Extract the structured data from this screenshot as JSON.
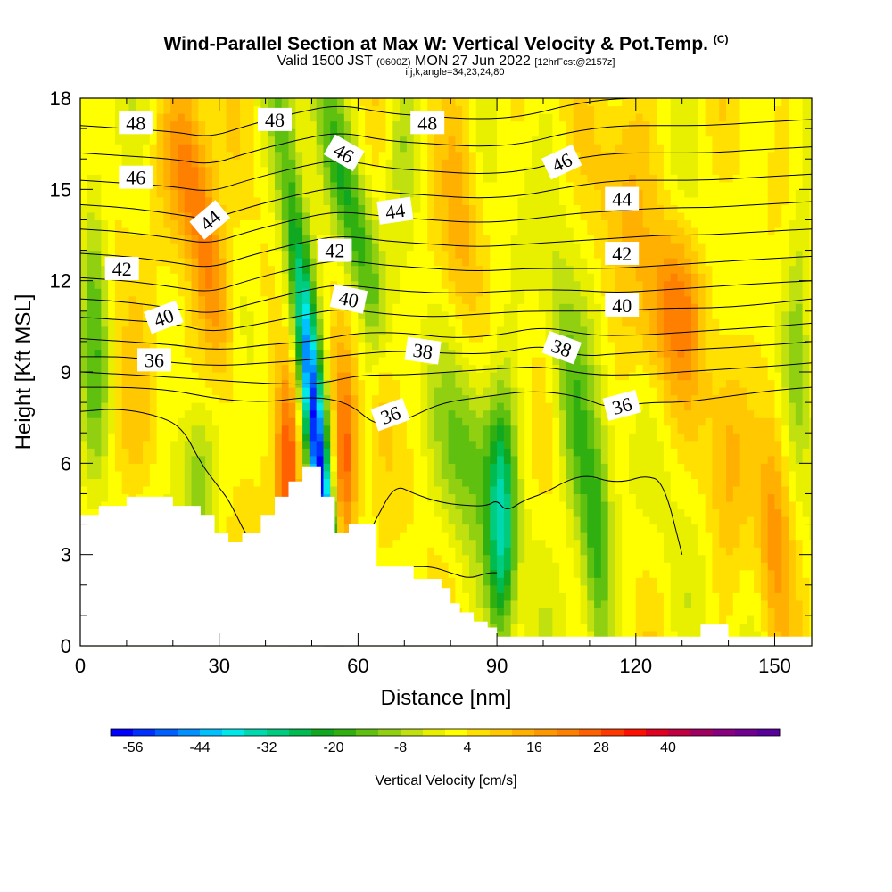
{
  "header": {
    "title_main": "Wind-Parallel Section at Max W: Vertical Velocity & Pot.Temp.",
    "title_copyright": "(C)",
    "valid_prefix": "Valid 1500 JST",
    "valid_utc": "(0600Z)",
    "valid_date": "MON 27 Jun 2022",
    "forecast": "[12hrFcst@2157z]",
    "grid_info": "i,j,k,angle=34,23,24,80"
  },
  "colorbar": {
    "label": "Vertical Velocity [cm/s]",
    "tick_labels": [
      "-56",
      "-44",
      "-32",
      "-20",
      "-8",
      "4",
      "16",
      "28",
      "40"
    ],
    "colors": [
      "#0000ff",
      "#0030ff",
      "#0060ff",
      "#0090ff",
      "#00c0ff",
      "#00e8e8",
      "#00d8b0",
      "#00cc80",
      "#00bb50",
      "#10a820",
      "#30b010",
      "#60c010",
      "#90d010",
      "#c0e010",
      "#e8f000",
      "#ffff00",
      "#ffe000",
      "#ffc800",
      "#ffb000",
      "#ff9800",
      "#ff8000",
      "#ff6000",
      "#ff3800",
      "#ff1000",
      "#e00020",
      "#c00040",
      "#a00060",
      "#880080",
      "#700090",
      "#58009a"
    ]
  },
  "chart_data": {
    "type": "heatmap",
    "title": "Wind-Parallel Section at Max W: Vertical Velocity & Pot.Temp.",
    "xlabel": "Distance [nm]",
    "ylabel": "Height [Kft MSL]",
    "xlim": [
      0,
      158
    ],
    "ylim": [
      0,
      18
    ],
    "xticks": [
      0,
      30,
      60,
      90,
      120,
      150
    ],
    "yticks": [
      0,
      3,
      6,
      9,
      12,
      15,
      18
    ],
    "xtick_labels": [
      "0",
      "30",
      "60",
      "90",
      "120",
      "150"
    ],
    "ytick_labels": [
      "0",
      "3",
      "6",
      "9",
      "12",
      "15",
      "18"
    ],
    "terrain_profile": {
      "x": [
        0,
        4,
        4,
        10,
        10,
        20,
        20,
        26,
        26,
        29,
        29,
        32,
        32,
        35,
        35,
        39,
        39,
        42,
        42,
        45,
        45,
        48,
        48,
        52,
        52,
        55,
        55,
        58,
        58,
        64,
        64,
        68,
        68,
        72,
        72,
        78,
        78,
        80,
        80,
        82,
        82,
        85,
        85,
        88,
        88,
        90,
        90,
        158
      ],
      "y": [
        4.3,
        4.3,
        4.6,
        4.6,
        4.9,
        4.9,
        4.6,
        4.6,
        4.3,
        4.3,
        3.7,
        3.7,
        3.4,
        3.4,
        3.7,
        3.7,
        4.3,
        4.3,
        4.9,
        4.9,
        5.4,
        5.4,
        5.9,
        5.9,
        4.9,
        4.9,
        3.7,
        3.7,
        4.0,
        4.0,
        2.6,
        2.6,
        2.6,
        2.6,
        2.2,
        2.2,
        1.9,
        1.9,
        1.4,
        1.4,
        1.1,
        1.1,
        0.8,
        0.8,
        0.6,
        0.6,
        0.3,
        0.3
      ]
    },
    "contour_field": "Potential Temperature",
    "contour_labels": [
      {
        "text": "48",
        "x": 12,
        "y": 17.2,
        "angle": 0
      },
      {
        "text": "48",
        "x": 42,
        "y": 17.3,
        "angle": 0
      },
      {
        "text": "48",
        "x": 75,
        "y": 17.2,
        "angle": 0
      },
      {
        "text": "46",
        "x": 12,
        "y": 15.4,
        "angle": 0
      },
      {
        "text": "46",
        "x": 57,
        "y": 16.2,
        "angle": 30
      },
      {
        "text": "46",
        "x": 104,
        "y": 15.9,
        "angle": -25
      },
      {
        "text": "44",
        "x": 28,
        "y": 14.0,
        "angle": -40
      },
      {
        "text": "44",
        "x": 68,
        "y": 14.3,
        "angle": -8
      },
      {
        "text": "44",
        "x": 117,
        "y": 14.7,
        "angle": 0
      },
      {
        "text": "42",
        "x": 9,
        "y": 12.4,
        "angle": 0
      },
      {
        "text": "42",
        "x": 55,
        "y": 13.0,
        "angle": 0
      },
      {
        "text": "42",
        "x": 117,
        "y": 12.9,
        "angle": 0
      },
      {
        "text": "40",
        "x": 18,
        "y": 10.8,
        "angle": -20
      },
      {
        "text": "40",
        "x": 58,
        "y": 11.4,
        "angle": 12
      },
      {
        "text": "40",
        "x": 117,
        "y": 11.2,
        "angle": 0
      },
      {
        "text": "38",
        "x": 74,
        "y": 9.7,
        "angle": 8
      },
      {
        "text": "38",
        "x": 104,
        "y": 9.8,
        "angle": 20
      },
      {
        "text": "36",
        "x": 16,
        "y": 9.4,
        "angle": 0
      },
      {
        "text": "36",
        "x": 67,
        "y": 7.6,
        "angle": -20
      },
      {
        "text": "36",
        "x": 117,
        "y": 7.9,
        "angle": -15
      }
    ],
    "contour_lines": [
      {
        "level": 36,
        "x": [
          0,
          10,
          20,
          30,
          40,
          50,
          58,
          64,
          70,
          78,
          88,
          98,
          108,
          114,
          122,
          130,
          140,
          150,
          158
        ],
        "y": [
          8.5,
          8.5,
          8.4,
          8.1,
          8.0,
          8.2,
          8.0,
          7.2,
          7.4,
          8.0,
          8.2,
          8.4,
          8.2,
          7.8,
          8.0,
          8.0,
          8.2,
          8.4,
          8.5
        ]
      },
      {
        "level": 37,
        "x": [
          0,
          12,
          22,
          32,
          42,
          52,
          60,
          70,
          80,
          90,
          100,
          110,
          120,
          130,
          140,
          150,
          158
        ],
        "y": [
          9.0,
          8.9,
          8.8,
          8.7,
          8.6,
          8.6,
          8.9,
          8.9,
          9.0,
          9.1,
          9.2,
          8.9,
          8.9,
          9.0,
          9.1,
          9.2,
          9.3
        ]
      },
      {
        "level": 38,
        "x": [
          0,
          10,
          20,
          30,
          40,
          50,
          60,
          70,
          80,
          90,
          100,
          108,
          116,
          128,
          140,
          150,
          158
        ],
        "y": [
          9.5,
          9.5,
          9.3,
          9.2,
          9.3,
          9.4,
          9.6,
          9.7,
          9.6,
          9.6,
          9.9,
          9.5,
          9.6,
          9.7,
          9.8,
          9.9,
          10.0
        ]
      },
      {
        "level": 39,
        "x": [
          0,
          10,
          20,
          30,
          40,
          50,
          60,
          70,
          80,
          90,
          100,
          110,
          120,
          130,
          140,
          150,
          158
        ],
        "y": [
          10.1,
          10.0,
          9.9,
          9.7,
          9.9,
          10.0,
          10.3,
          10.3,
          10.1,
          10.2,
          10.5,
          10.2,
          10.2,
          10.3,
          10.4,
          10.5,
          10.6
        ]
      },
      {
        "level": 40,
        "x": [
          0,
          10,
          20,
          28,
          36,
          46,
          56,
          66,
          76,
          86,
          96,
          106,
          116,
          126,
          136,
          146,
          158
        ],
        "y": [
          10.8,
          10.7,
          10.6,
          10.3,
          10.5,
          10.8,
          11.1,
          10.9,
          10.8,
          10.9,
          11.0,
          11.0,
          11.0,
          11.1,
          11.1,
          11.2,
          11.4
        ]
      },
      {
        "level": 41,
        "x": [
          0,
          10,
          20,
          28,
          36,
          46,
          56,
          66,
          76,
          86,
          96,
          106,
          116,
          126,
          136,
          146,
          158
        ],
        "y": [
          11.4,
          11.3,
          11.1,
          10.9,
          11.2,
          11.6,
          11.9,
          11.7,
          11.6,
          11.6,
          11.7,
          11.7,
          11.6,
          11.7,
          11.8,
          11.9,
          12.0
        ]
      },
      {
        "level": 42,
        "x": [
          0,
          10,
          20,
          28,
          36,
          46,
          56,
          66,
          76,
          86,
          96,
          106,
          116,
          126,
          136,
          146,
          158
        ],
        "y": [
          12.1,
          12.0,
          11.8,
          11.6,
          12.0,
          12.4,
          12.7,
          12.5,
          12.4,
          12.3,
          12.4,
          12.4,
          12.4,
          12.5,
          12.6,
          12.7,
          12.8
        ]
      },
      {
        "level": 43,
        "x": [
          0,
          10,
          20,
          28,
          36,
          46,
          56,
          66,
          76,
          86,
          96,
          106,
          116,
          126,
          136,
          146,
          158
        ],
        "y": [
          12.9,
          12.8,
          12.6,
          12.4,
          12.8,
          13.2,
          13.5,
          13.3,
          13.2,
          13.1,
          13.2,
          13.3,
          13.4,
          13.5,
          13.5,
          13.6,
          13.7
        ]
      },
      {
        "level": 44,
        "x": [
          0,
          10,
          20,
          28,
          36,
          46,
          56,
          66,
          76,
          86,
          96,
          106,
          116,
          126,
          136,
          146,
          158
        ],
        "y": [
          13.7,
          13.6,
          13.4,
          13.2,
          13.6,
          14.0,
          14.3,
          14.1,
          14.0,
          13.9,
          14.0,
          14.2,
          14.3,
          14.4,
          14.4,
          14.5,
          14.6
        ]
      },
      {
        "level": 45,
        "x": [
          0,
          10,
          20,
          28,
          36,
          46,
          56,
          66,
          76,
          86,
          96,
          106,
          116,
          126,
          136,
          146,
          158
        ],
        "y": [
          14.5,
          14.4,
          14.2,
          14.0,
          14.4,
          14.8,
          15.1,
          14.9,
          14.8,
          14.7,
          14.8,
          15.1,
          15.3,
          15.3,
          15.3,
          15.4,
          15.5
        ]
      },
      {
        "level": 46,
        "x": [
          0,
          10,
          20,
          28,
          36,
          46,
          56,
          66,
          76,
          86,
          96,
          106,
          116,
          126,
          136,
          146,
          158
        ],
        "y": [
          15.3,
          15.2,
          15.1,
          14.9,
          15.3,
          15.7,
          16.0,
          15.7,
          15.6,
          15.5,
          15.6,
          16.0,
          16.2,
          16.2,
          16.2,
          16.3,
          16.4
        ]
      },
      {
        "level": 47,
        "x": [
          0,
          10,
          20,
          28,
          36,
          46,
          56,
          66,
          76,
          86,
          96,
          106,
          116,
          126,
          136,
          146,
          158
        ],
        "y": [
          16.2,
          16.1,
          16.0,
          15.8,
          16.2,
          16.6,
          16.9,
          16.6,
          16.5,
          16.4,
          16.5,
          16.9,
          17.1,
          17.1,
          17.1,
          17.2,
          17.3
        ]
      },
      {
        "level": 48,
        "x": [
          0,
          10,
          20,
          28,
          36,
          46,
          56,
          66,
          76,
          86,
          96,
          106,
          116,
          126,
          136,
          146,
          158
        ],
        "y": [
          17.1,
          17.0,
          16.9,
          16.7,
          17.1,
          17.5,
          17.8,
          17.5,
          17.4,
          17.3,
          17.4,
          17.8,
          18.0,
          18.0,
          18.0,
          18.0,
          18.0
        ]
      },
      {
        "level": 35,
        "x": [
          0,
          8,
          16,
          22,
          26,
          30,
          32,
          34,
          36,
          38
        ],
        "y": [
          7.7,
          7.8,
          7.6,
          7.2,
          6.0,
          5.2,
          4.8,
          4.2,
          3.6,
          3.4
        ]
      },
      {
        "level": 35,
        "x": [
          60,
          64,
          68,
          72,
          78,
          84,
          88,
          90,
          92,
          96,
          100,
          106,
          110,
          114,
          118,
          122,
          126,
          130
        ],
        "y": [
          3.0,
          4.2,
          5.3,
          5.0,
          4.7,
          4.6,
          4.6,
          4.8,
          4.4,
          4.8,
          5.0,
          5.5,
          5.6,
          5.4,
          5.4,
          5.6,
          5.4,
          3.0
        ]
      },
      {
        "level": 34,
        "x": [
          72,
          76,
          80,
          84,
          88,
          90
        ],
        "y": [
          2.6,
          2.6,
          2.4,
          2.2,
          2.4,
          2.4
        ]
      }
    ],
    "w_features": [
      {
        "x": 52,
        "y": 5.0,
        "sx": 1.5,
        "sy": 4.5,
        "w": -48,
        "tilt": -0.6
      },
      {
        "x": 48,
        "y": 11.5,
        "sx": 2.5,
        "sy": 5.0,
        "w": -22,
        "tilt": -0.8
      },
      {
        "x": 58,
        "y": 14.5,
        "sx": 2.8,
        "sy": 3.5,
        "w": -18,
        "tilt": -1.5
      },
      {
        "x": 45,
        "y": 6.0,
        "sx": 2.0,
        "sy": 2.5,
        "w": 30,
        "tilt": 0
      },
      {
        "x": 57,
        "y": 5.5,
        "sx": 1.8,
        "sy": 2.5,
        "w": 24,
        "tilt": 0
      },
      {
        "x": 28,
        "y": 12.5,
        "sx": 3.0,
        "sy": 3.0,
        "w": 20,
        "tilt": -1.0
      },
      {
        "x": 22,
        "y": 15.5,
        "sx": 4.0,
        "sy": 2.0,
        "w": 14,
        "tilt": 0
      },
      {
        "x": 26,
        "y": 5.8,
        "sx": 3.0,
        "sy": 2.0,
        "w": -16,
        "tilt": 0
      },
      {
        "x": 3,
        "y": 11.0,
        "sx": 2.0,
        "sy": 4.0,
        "w": -14,
        "tilt": 0
      },
      {
        "x": 91,
        "y": 3.8,
        "sx": 2.2,
        "sy": 2.8,
        "w": -32,
        "tilt": 0
      },
      {
        "x": 84,
        "y": 6.5,
        "sx": 5.0,
        "sy": 2.5,
        "w": -14,
        "tilt": 0
      },
      {
        "x": 108,
        "y": 6.0,
        "sx": 3.0,
        "sy": 4.0,
        "w": -18,
        "tilt": -0.8
      },
      {
        "x": 112,
        "y": 3.5,
        "sx": 2.0,
        "sy": 2.5,
        "w": -12,
        "tilt": 0
      },
      {
        "x": 128,
        "y": 11.2,
        "sx": 5.0,
        "sy": 2.0,
        "w": 18,
        "tilt": 0
      },
      {
        "x": 150,
        "y": 4.2,
        "sx": 2.5,
        "sy": 3.0,
        "w": 14,
        "tilt": 0
      },
      {
        "x": 82,
        "y": 15.0,
        "sx": 3.0,
        "sy": 3.5,
        "w": 10,
        "tilt": 0
      },
      {
        "x": 70,
        "y": 16.5,
        "sx": 2.5,
        "sy": 2.0,
        "w": -10,
        "tilt": 0
      },
      {
        "x": 118,
        "y": 16.0,
        "sx": 4.0,
        "sy": 2.5,
        "w": 10,
        "tilt": 0
      },
      {
        "x": 155,
        "y": 11.0,
        "sx": 2.0,
        "sy": 3.5,
        "w": -10,
        "tilt": 0
      },
      {
        "x": 140,
        "y": 7.0,
        "sx": 3.0,
        "sy": 3.0,
        "w": 10,
        "tilt": 0
      },
      {
        "x": 66,
        "y": 8.5,
        "sx": 2.0,
        "sy": 2.0,
        "w": 10,
        "tilt": 0
      },
      {
        "x": 12,
        "y": 7.0,
        "sx": 4.0,
        "sy": 2.0,
        "w": 8,
        "tilt": 0
      }
    ]
  }
}
